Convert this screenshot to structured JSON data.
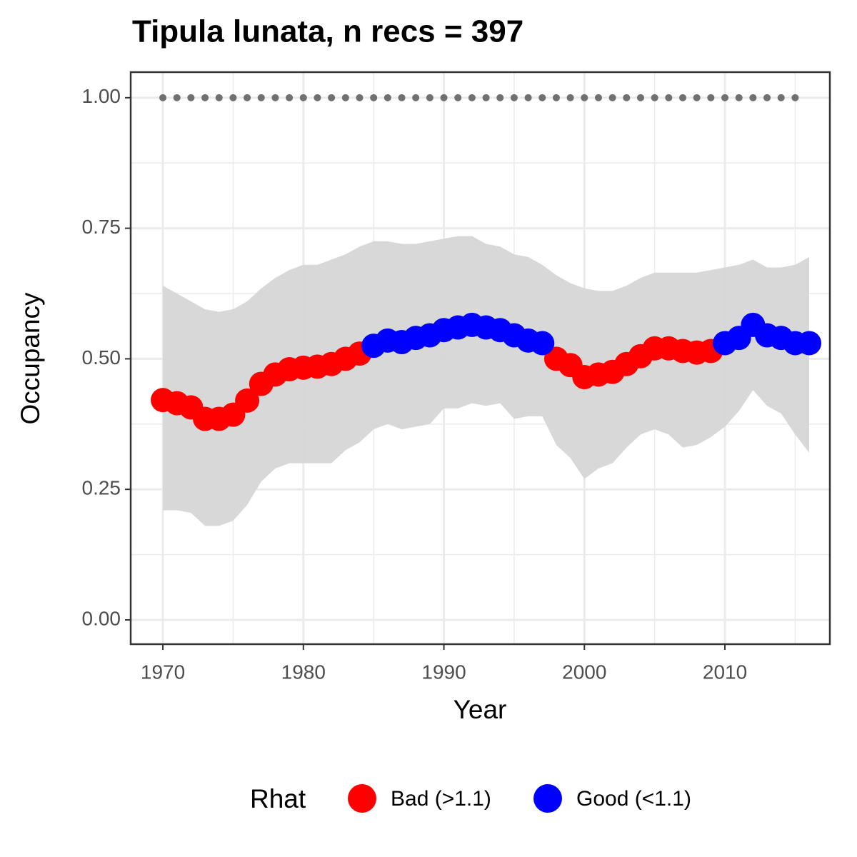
{
  "chart_data": {
    "type": "scatter",
    "title": "Tipula lunata, n recs = 397",
    "x_label": "Year",
    "y_label": "Occupancy",
    "legend_title": "Rhat",
    "x": [
      1970,
      1971,
      1972,
      1973,
      1974,
      1975,
      1976,
      1977,
      1978,
      1979,
      1980,
      1981,
      1982,
      1983,
      1984,
      1985,
      1986,
      1987,
      1988,
      1989,
      1990,
      1991,
      1992,
      1993,
      1994,
      1995,
      1996,
      1997,
      1998,
      1999,
      2000,
      2001,
      2002,
      2003,
      2004,
      2005,
      2006,
      2007,
      2008,
      2009,
      2010,
      2011,
      2012,
      2013,
      2014,
      2015,
      2016
    ],
    "series": [
      {
        "name": "Bad (>1.1)",
        "color": "#ff0000",
        "values": [
          0.421,
          0.415,
          0.407,
          0.385,
          0.385,
          0.393,
          0.42,
          0.452,
          0.47,
          0.48,
          0.483,
          0.485,
          0.49,
          0.5,
          0.51,
          null,
          null,
          null,
          null,
          null,
          null,
          null,
          null,
          null,
          null,
          null,
          null,
          null,
          0.5,
          0.488,
          0.465,
          0.47,
          0.475,
          0.49,
          0.505,
          0.52,
          0.52,
          0.515,
          0.512,
          0.515,
          null,
          null,
          null,
          null,
          null,
          null,
          null
        ]
      },
      {
        "name": "Good (<1.1)",
        "color": "#0000ff",
        "values": [
          null,
          null,
          null,
          null,
          null,
          null,
          null,
          null,
          null,
          null,
          null,
          null,
          null,
          null,
          null,
          0.525,
          0.535,
          0.532,
          0.54,
          0.545,
          0.555,
          0.56,
          0.565,
          0.56,
          0.555,
          0.545,
          0.535,
          0.53,
          null,
          null,
          null,
          null,
          null,
          null,
          null,
          null,
          null,
          null,
          null,
          null,
          0.53,
          0.54,
          0.565,
          0.545,
          0.54,
          0.53,
          0.53
        ]
      }
    ],
    "band": {
      "color": "#d6d6d6",
      "lower": [
        0.21,
        0.21,
        0.205,
        0.18,
        0.18,
        0.19,
        0.22,
        0.265,
        0.29,
        0.3,
        0.3,
        0.3,
        0.3,
        0.325,
        0.34,
        0.365,
        0.375,
        0.365,
        0.37,
        0.375,
        0.405,
        0.405,
        0.415,
        0.41,
        0.415,
        0.385,
        0.39,
        0.39,
        0.335,
        0.31,
        0.27,
        0.29,
        0.3,
        0.33,
        0.355,
        0.365,
        0.355,
        0.33,
        0.335,
        0.35,
        0.37,
        0.4,
        0.44,
        0.41,
        0.395,
        0.355,
        0.32
      ],
      "upper": [
        0.64,
        0.625,
        0.61,
        0.595,
        0.59,
        0.595,
        0.61,
        0.635,
        0.655,
        0.67,
        0.68,
        0.68,
        0.69,
        0.7,
        0.715,
        0.725,
        0.725,
        0.72,
        0.72,
        0.725,
        0.73,
        0.735,
        0.735,
        0.72,
        0.715,
        0.7,
        0.695,
        0.68,
        0.66,
        0.645,
        0.635,
        0.63,
        0.63,
        0.64,
        0.655,
        0.665,
        0.665,
        0.665,
        0.665,
        0.67,
        0.675,
        0.68,
        0.69,
        0.675,
        0.675,
        0.68,
        0.695
      ]
    },
    "reference": {
      "color": "#707070",
      "values": [
        1,
        1,
        1,
        1,
        1,
        1,
        1,
        1,
        1,
        1,
        1,
        1,
        1,
        1,
        1,
        1,
        1,
        1,
        1,
        1,
        1,
        1,
        1,
        1,
        1,
        1,
        1,
        1,
        1,
        1,
        1,
        1,
        1,
        1,
        1,
        1,
        1,
        1,
        1,
        1,
        1,
        1,
        1,
        1,
        1,
        1,
        null
      ]
    },
    "xlim": [
      1967.71,
      2017.47
    ],
    "ylim": [
      -0.0465,
      1.049
    ],
    "xticks": [
      1970,
      1980,
      1990,
      2000,
      2010
    ],
    "yticks": [
      {
        "value": 0,
        "label": "0.00"
      },
      {
        "value": 0.25,
        "label": "0.25"
      },
      {
        "value": 0.5,
        "label": "0.50"
      },
      {
        "value": 0.75,
        "label": "0.75"
      },
      {
        "value": 1,
        "label": "1.00"
      }
    ],
    "grid": true
  }
}
